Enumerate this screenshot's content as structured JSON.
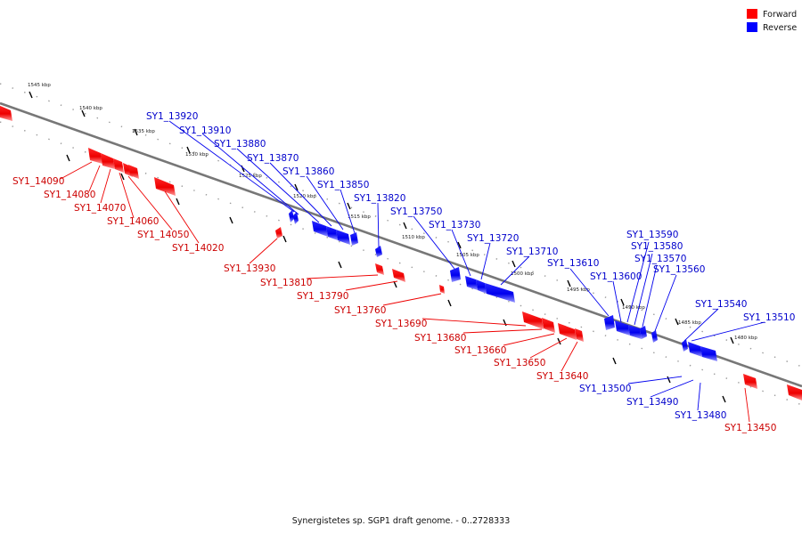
{
  "legend": [
    {
      "label": "Forward",
      "color": "#ff0000"
    },
    {
      "label": "Reverse",
      "color": "#0000ff"
    }
  ],
  "colors": {
    "forward": "#ff0000",
    "forward_light": "#ff8c8c",
    "reverse": "#0000ff",
    "reverse_light": "#8c8cff",
    "axis": "#888888",
    "forward_label": "#cc0000",
    "reverse_label": "#0000cc"
  },
  "caption": "Synergistetes sp. SGP1 draft genome. - 0..2728333",
  "scale_labels": [
    "1545 kbp",
    "1540 kbp",
    "1535 kbp",
    "1530 kbp",
    "1525 kbp",
    "1520 kbp",
    "1515 kbp",
    "1510 kbp",
    "1505 kbp",
    "1500 kbp",
    "1495 kbp",
    "1490 kbp",
    "1485 kbp",
    "1480 kbp"
  ],
  "forward_genes": [
    "SY1_14090",
    "SY1_14080",
    "SY1_14070",
    "SY1_14060",
    "SY1_14050",
    "SY1_14020",
    "SY1_13930",
    "SY1_13810",
    "SY1_13790",
    "SY1_13760",
    "SY1_13690",
    "SY1_13680",
    "SY1_13660",
    "SY1_13650",
    "SY1_13640",
    "SY1_13450"
  ],
  "reverse_genes": [
    "SY1_13920",
    "SY1_13910",
    "SY1_13880",
    "SY1_13870",
    "SY1_13860",
    "SY1_13850",
    "SY1_13820",
    "SY1_13750",
    "SY1_13730",
    "SY1_13720",
    "SY1_13710",
    "SY1_13610",
    "SY1_13600",
    "SY1_13590",
    "SY1_13580",
    "SY1_13570",
    "SY1_13560",
    "SY1_13540",
    "SY1_13510",
    "SY1_13500",
    "SY1_13490",
    "SY1_13480"
  ]
}
